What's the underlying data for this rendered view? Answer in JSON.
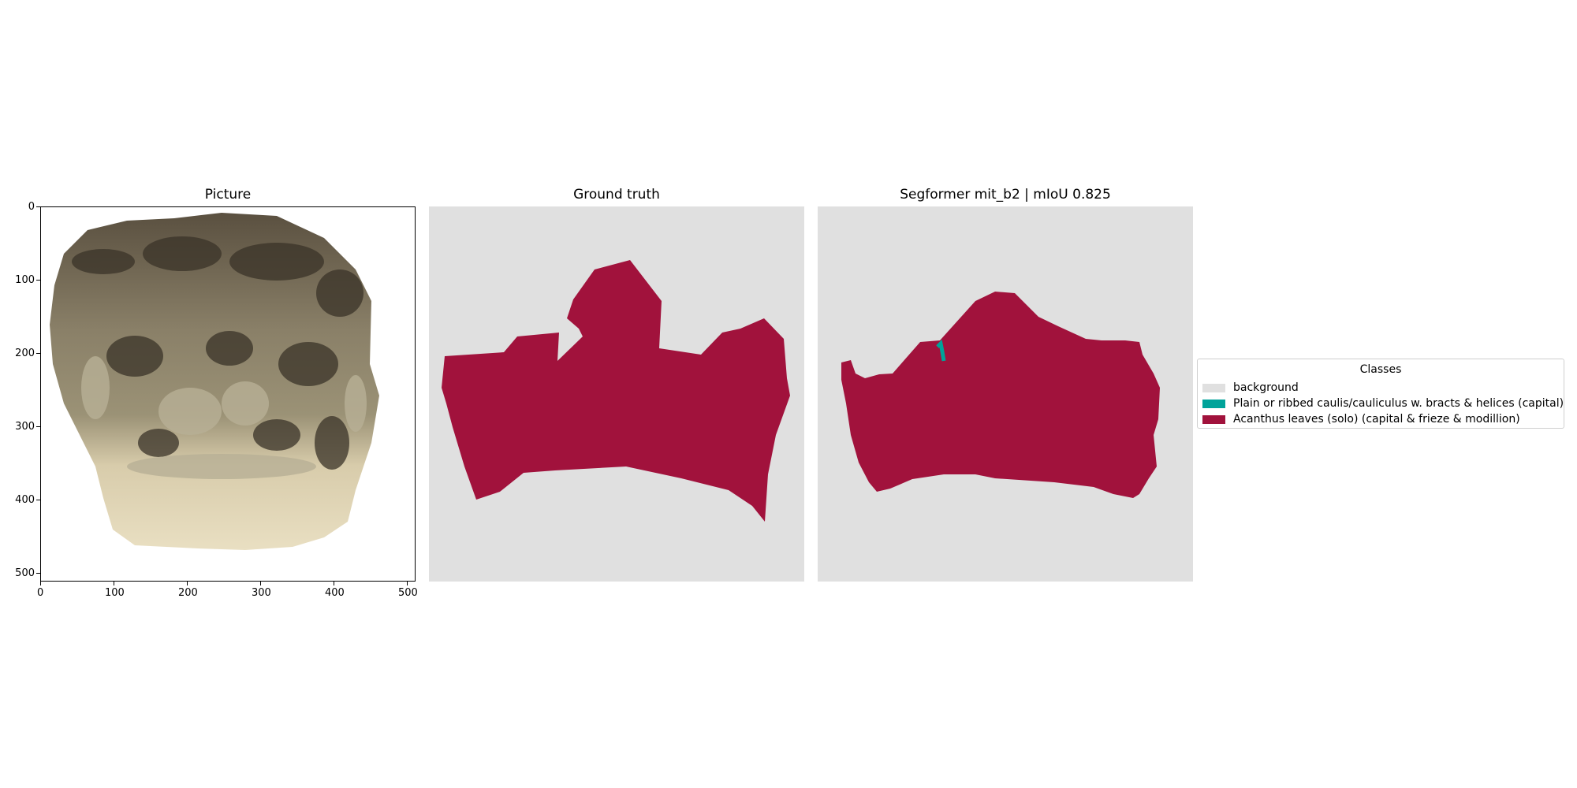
{
  "panels": {
    "picture": {
      "title": "Picture"
    },
    "ground_truth": {
      "title": "Ground truth"
    },
    "prediction": {
      "title": "Segformer mit_b2 | mIoU 0.825"
    }
  },
  "axis": {
    "x_ticks": [
      "0",
      "100",
      "200",
      "300",
      "400",
      "500"
    ],
    "y_ticks": [
      "0",
      "100",
      "200",
      "300",
      "400",
      "500"
    ]
  },
  "legend": {
    "title": "Classes",
    "items": [
      {
        "label": "background",
        "color": "#e0e0e0"
      },
      {
        "label": "Plain or ribbed caulis/cauliculus w. bracts & helices (capital)",
        "color": "#00a39a"
      },
      {
        "label": "Acanthus leaves (solo) (capital & frieze & modillion)",
        "color": "#a1123c"
      }
    ]
  }
}
